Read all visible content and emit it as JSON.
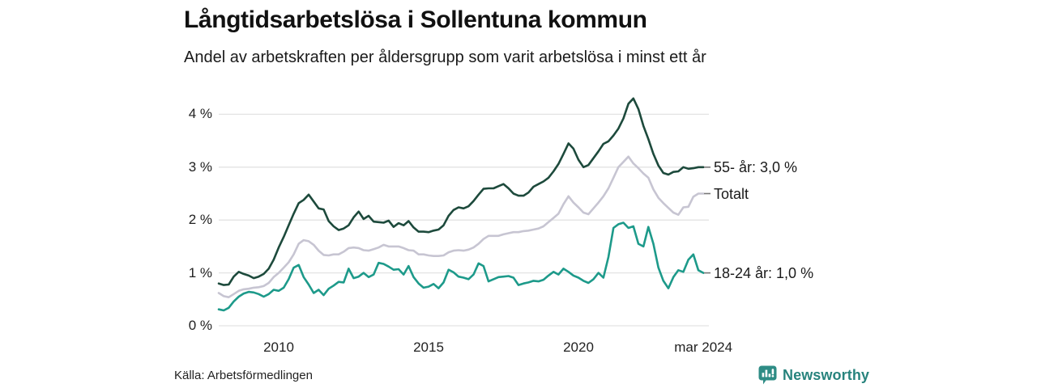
{
  "chart_data": {
    "type": "line",
    "title": "Långtidsarbetslösa i Sollentuna kommun",
    "subtitle": "Andel av arbetskraften per åldersgrupp som varit arbetslösa i minst ett år",
    "unit": "%",
    "grid": "horizontal",
    "legend_position": "right-end-labels",
    "x_start_year": 2008,
    "x_step_years": 0.1666667,
    "x_end_year": 2024.1667,
    "xlim": [
      2008,
      2024.4
    ],
    "ylim": [
      0,
      4.35
    ],
    "y_ticks": [
      {
        "value": 0,
        "label": "0 %"
      },
      {
        "value": 1,
        "label": "1 %"
      },
      {
        "value": 2,
        "label": "2 %"
      },
      {
        "value": 3,
        "label": "3 %"
      },
      {
        "value": 4,
        "label": "4 %"
      }
    ],
    "x_ticks": [
      {
        "year": 2010,
        "label": "2010"
      },
      {
        "year": 2015,
        "label": "2015"
      },
      {
        "year": 2020,
        "label": "2020"
      },
      {
        "year": 2024.1667,
        "label": "mar 2024"
      }
    ],
    "series": [
      {
        "name": "Totalt",
        "end_label": "Totalt",
        "last_value": 2.5,
        "color": "#c7c5d2",
        "values": [
          0.62,
          0.56,
          0.54,
          0.6,
          0.66,
          0.69,
          0.7,
          0.72,
          0.73,
          0.75,
          0.81,
          0.92,
          1.0,
          1.1,
          1.2,
          1.35,
          1.55,
          1.62,
          1.6,
          1.53,
          1.42,
          1.34,
          1.33,
          1.35,
          1.35,
          1.4,
          1.47,
          1.48,
          1.47,
          1.43,
          1.42,
          1.45,
          1.48,
          1.53,
          1.5,
          1.5,
          1.5,
          1.47,
          1.43,
          1.42,
          1.35,
          1.35,
          1.33,
          1.32,
          1.32,
          1.33,
          1.39,
          1.42,
          1.43,
          1.42,
          1.44,
          1.48,
          1.55,
          1.64,
          1.7,
          1.7,
          1.7,
          1.73,
          1.75,
          1.77,
          1.77,
          1.79,
          1.8,
          1.82,
          1.84,
          1.88,
          1.96,
          2.04,
          2.12,
          2.3,
          2.45,
          2.33,
          2.24,
          2.14,
          2.11,
          2.22,
          2.33,
          2.45,
          2.6,
          2.8,
          3.0,
          3.1,
          3.2,
          3.07,
          2.98,
          2.88,
          2.8,
          2.58,
          2.42,
          2.32,
          2.23,
          2.14,
          2.1,
          2.24,
          2.25,
          2.44,
          2.5,
          2.5
        ]
      },
      {
        "name": "18-24 år",
        "end_label": "18-24 år: 1,0 %",
        "last_value": 1.0,
        "color": "#1d9a8a",
        "values": [
          0.31,
          0.29,
          0.34,
          0.46,
          0.55,
          0.61,
          0.64,
          0.63,
          0.6,
          0.55,
          0.6,
          0.68,
          0.66,
          0.72,
          0.88,
          1.1,
          1.15,
          0.92,
          0.78,
          0.62,
          0.68,
          0.58,
          0.7,
          0.76,
          0.83,
          0.82,
          1.08,
          0.9,
          0.93,
          1.0,
          0.92,
          0.97,
          1.19,
          1.17,
          1.12,
          1.06,
          1.07,
          0.97,
          1.13,
          0.92,
          0.8,
          0.72,
          0.74,
          0.79,
          0.71,
          0.82,
          1.06,
          1.01,
          0.93,
          0.91,
          0.88,
          0.97,
          1.18,
          1.13,
          0.84,
          0.88,
          0.92,
          0.93,
          0.94,
          0.91,
          0.77,
          0.8,
          0.82,
          0.85,
          0.84,
          0.87,
          0.95,
          1.02,
          0.97,
          1.08,
          1.02,
          0.95,
          0.91,
          0.85,
          0.81,
          0.88,
          1.0,
          0.91,
          1.3,
          1.85,
          1.92,
          1.95,
          1.85,
          1.88,
          1.55,
          1.5,
          1.87,
          1.55,
          1.1,
          0.85,
          0.71,
          0.92,
          1.05,
          1.02,
          1.25,
          1.35,
          1.05,
          1.0
        ]
      },
      {
        "name": "55- år",
        "end_label": "55- år: 3,0 %",
        "last_value": 3.0,
        "color": "#1d4a3c",
        "values": [
          0.8,
          0.77,
          0.78,
          0.93,
          1.02,
          0.98,
          0.95,
          0.9,
          0.93,
          0.98,
          1.08,
          1.25,
          1.48,
          1.68,
          1.9,
          2.12,
          2.32,
          2.38,
          2.48,
          2.35,
          2.22,
          2.2,
          1.98,
          1.88,
          1.81,
          1.84,
          1.9,
          2.05,
          2.16,
          2.02,
          2.08,
          1.97,
          1.96,
          1.95,
          1.99,
          1.87,
          1.94,
          1.9,
          1.98,
          1.86,
          1.78,
          1.78,
          1.77,
          1.8,
          1.82,
          1.9,
          2.08,
          2.19,
          2.24,
          2.22,
          2.26,
          2.36,
          2.48,
          2.59,
          2.6,
          2.6,
          2.64,
          2.68,
          2.6,
          2.5,
          2.46,
          2.46,
          2.52,
          2.63,
          2.68,
          2.73,
          2.8,
          2.92,
          3.06,
          3.25,
          3.45,
          3.35,
          3.14,
          3.0,
          3.04,
          3.17,
          3.3,
          3.44,
          3.49,
          3.6,
          3.73,
          3.92,
          4.2,
          4.3,
          4.1,
          3.78,
          3.53,
          3.25,
          3.03,
          2.89,
          2.86,
          2.91,
          2.92,
          3.0,
          2.97,
          2.98,
          3.0,
          3.0
        ]
      }
    ]
  },
  "footer": {
    "source": "Källa: Arbetsförmedlingen",
    "logo_text": "Newsworthy"
  },
  "colors": {
    "gridline": "#e3e3e3",
    "tick_dash": "#777777",
    "title_text": "#111111",
    "body_text": "#1a1a1a",
    "logo_teal": "#2e8c85"
  }
}
